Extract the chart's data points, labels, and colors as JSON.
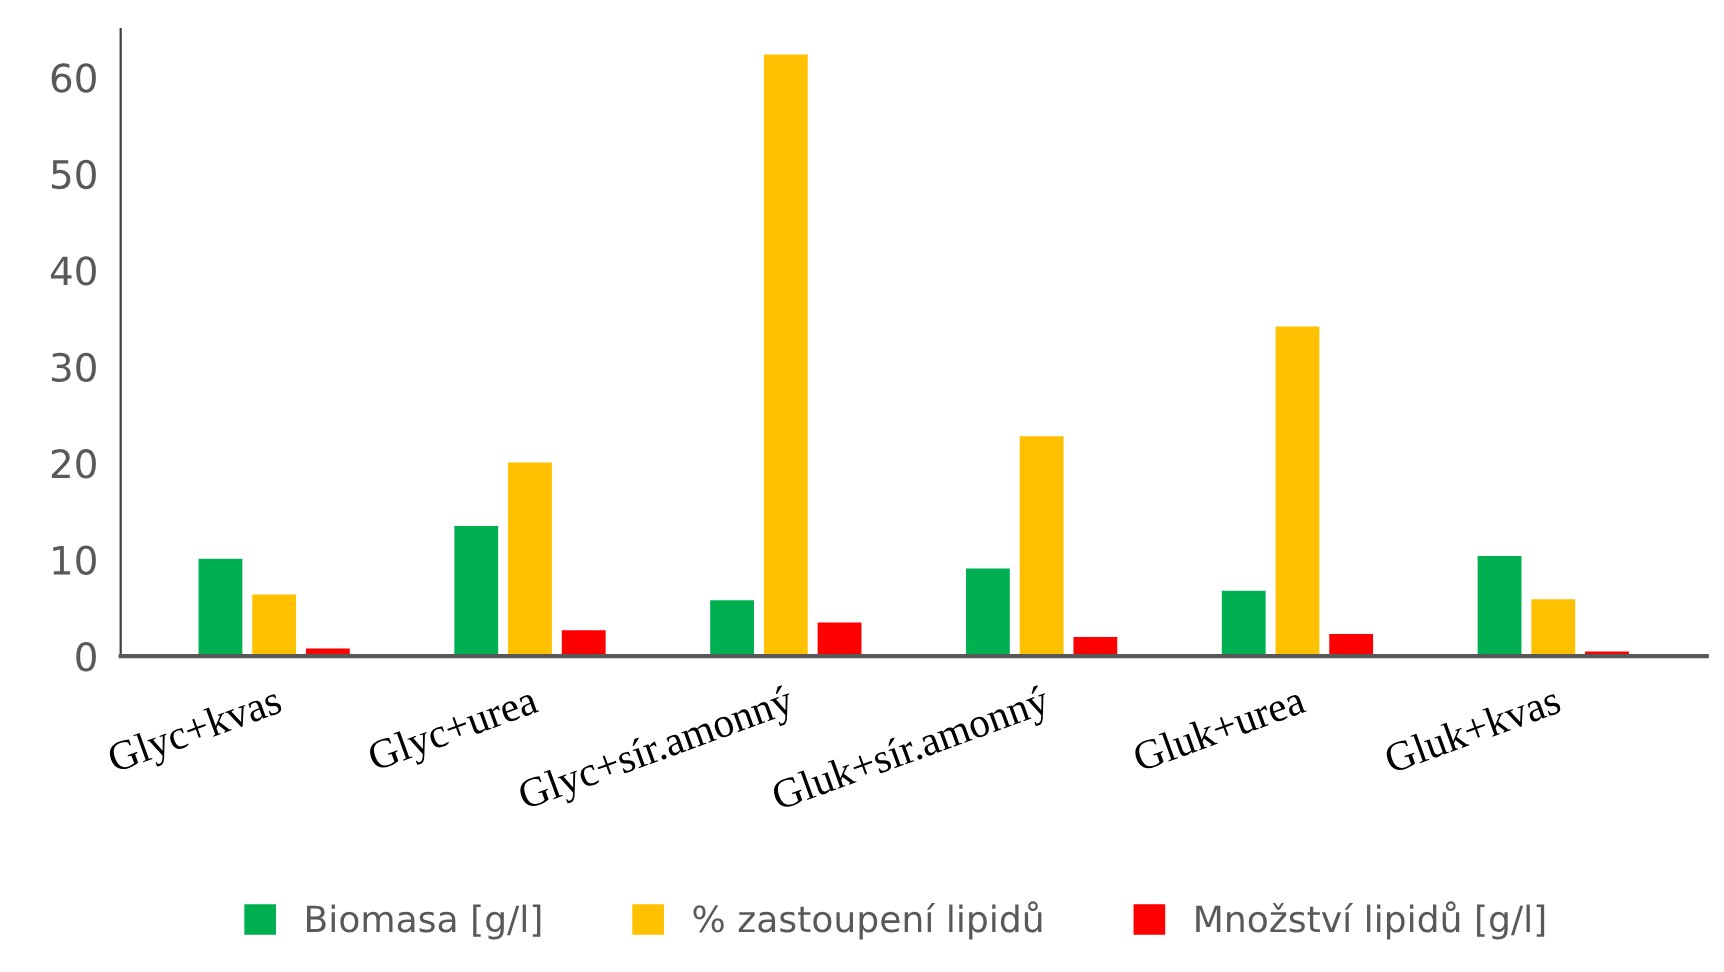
{
  "chart_data": {
    "type": "bar",
    "categories": [
      "Glyc+kvas",
      "Glyc+urea",
      "Glyc+sír.amonný",
      "Gluk+sír.amonný",
      "Gluk+urea",
      "Gluk+kvas"
    ],
    "series": [
      {
        "name": "Biomasa [g/l]",
        "color": "#00b050",
        "values": [
          10.2,
          13.6,
          5.9,
          9.2,
          6.9,
          10.5
        ]
      },
      {
        "name": "% zastoupení lipidů",
        "color": "#ffc000",
        "values": [
          6.5,
          20.2,
          62.5,
          22.9,
          34.3,
          6.0
        ]
      },
      {
        "name": "Množství lipidů [g/l]",
        "color": "#ff0000",
        "values": [
          0.9,
          2.8,
          3.6,
          2.1,
          2.4,
          0.6
        ]
      }
    ],
    "ylim": [
      0,
      65
    ],
    "yticks": [
      0,
      10,
      20,
      30,
      40,
      50,
      60
    ],
    "grid": false,
    "legend": "bottom"
  }
}
